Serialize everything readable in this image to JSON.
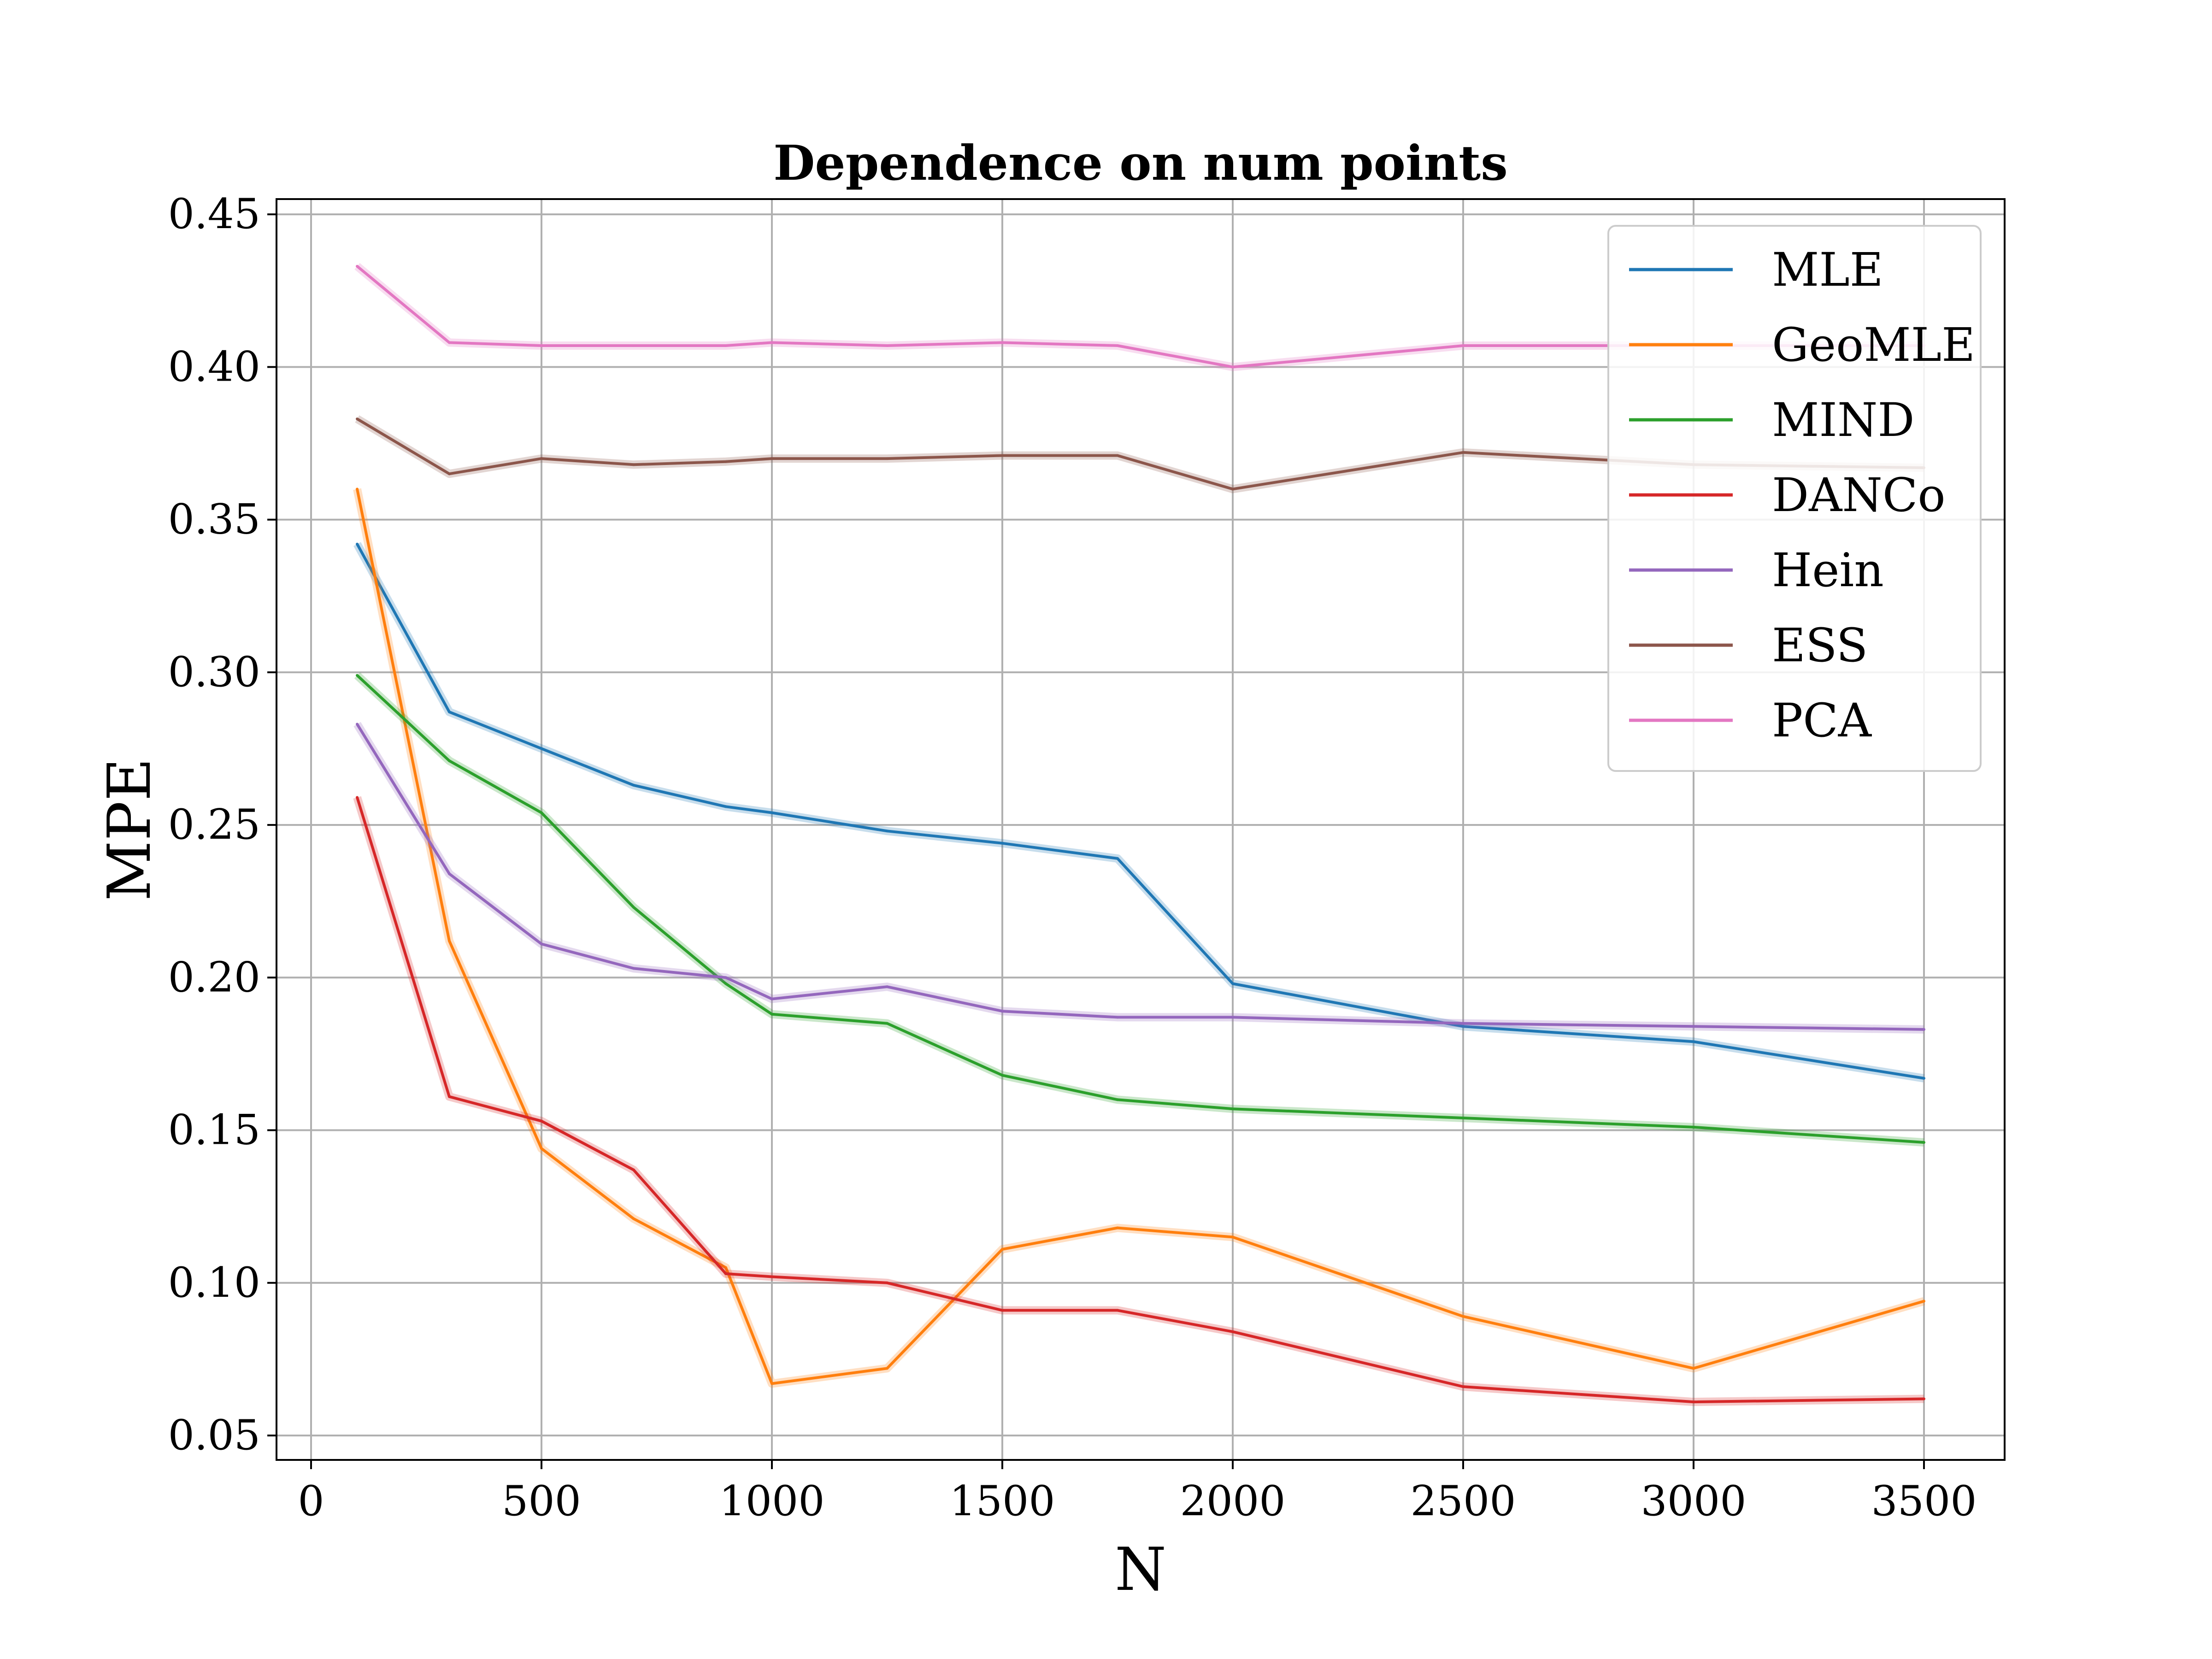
{
  "chart_data": {
    "type": "line",
    "title": "Dependence on num points",
    "xlabel": "N",
    "ylabel": "MPE",
    "xlim": [
      -75,
      3675
    ],
    "ylim": [
      0.042,
      0.455
    ],
    "xticks": [
      0,
      500,
      1000,
      1500,
      2000,
      2500,
      3000,
      3500
    ],
    "yticks": [
      0.05,
      0.1,
      0.15,
      0.2,
      0.25,
      0.3,
      0.35,
      0.4,
      0.45
    ],
    "xtick_labels": [
      "0",
      "500",
      "1000",
      "1500",
      "2000",
      "2500",
      "3000",
      "3500"
    ],
    "ytick_labels": [
      "0.05",
      "0.10",
      "0.15",
      "0.20",
      "0.25",
      "0.30",
      "0.35",
      "0.40",
      "0.45"
    ],
    "grid": true,
    "legend_position": "top-right",
    "x": [
      100,
      300,
      500,
      700,
      900,
      1000,
      1250,
      1500,
      1750,
      2000,
      2500,
      3000,
      3500
    ],
    "series": [
      {
        "name": "MLE",
        "color": "#1f77b4",
        "values": [
          0.342,
          0.287,
          0.275,
          0.263,
          0.256,
          0.254,
          0.248,
          0.244,
          0.239,
          0.198,
          0.184,
          0.179,
          0.167
        ]
      },
      {
        "name": "GeoMLE",
        "color": "#ff7f0e",
        "values": [
          0.36,
          0.212,
          0.144,
          0.121,
          0.105,
          0.067,
          0.072,
          0.111,
          0.118,
          0.115,
          0.089,
          0.072,
          0.094
        ]
      },
      {
        "name": "MIND",
        "color": "#2ca02c",
        "values": [
          0.299,
          0.271,
          0.254,
          0.223,
          0.198,
          0.188,
          0.185,
          0.168,
          0.16,
          0.157,
          0.154,
          0.151,
          0.146
        ]
      },
      {
        "name": "DANCo",
        "color": "#d62728",
        "values": [
          0.259,
          0.161,
          0.153,
          0.137,
          0.103,
          0.102,
          0.1,
          0.091,
          0.091,
          0.084,
          0.066,
          0.061,
          0.062
        ]
      },
      {
        "name": "Hein",
        "color": "#9467bd",
        "values": [
          0.283,
          0.234,
          0.211,
          0.203,
          0.2,
          0.193,
          0.197,
          0.189,
          0.187,
          0.187,
          0.185,
          0.184,
          0.183
        ]
      },
      {
        "name": "ESS",
        "color": "#8c564b",
        "values": [
          0.383,
          0.365,
          0.37,
          0.368,
          0.369,
          0.37,
          0.37,
          0.371,
          0.371,
          0.36,
          0.372,
          0.368,
          0.367
        ]
      },
      {
        "name": "PCA",
        "color": "#e377c2",
        "values": [
          0.433,
          0.408,
          0.407,
          0.407,
          0.407,
          0.408,
          0.407,
          0.408,
          0.407,
          0.4,
          0.407,
          0.407,
          0.407
        ]
      }
    ]
  }
}
